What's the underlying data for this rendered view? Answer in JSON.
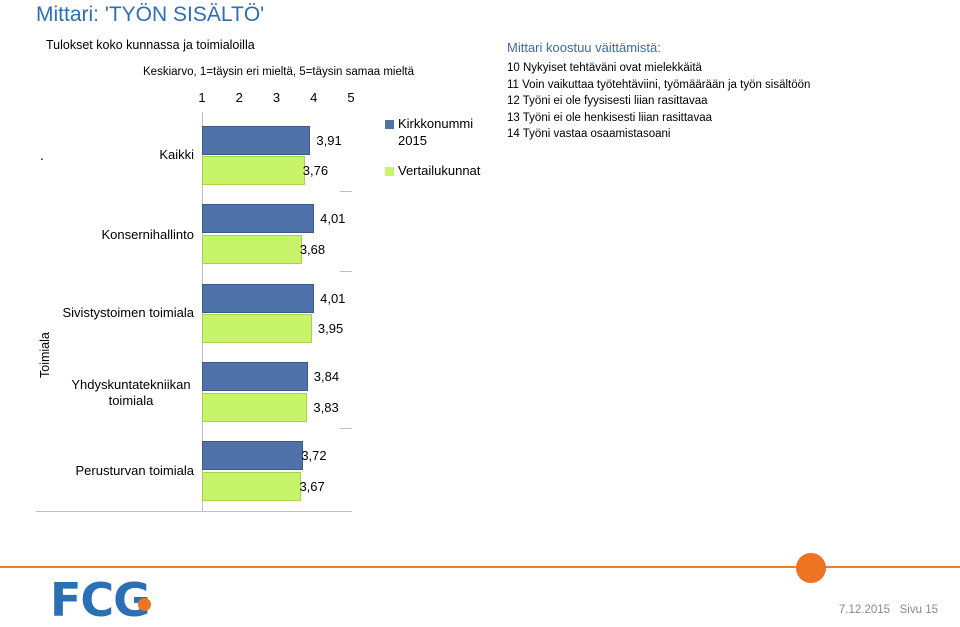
{
  "page": {
    "title": "Mittari: 'TYÖN SISÄLTÖ'",
    "footer_date": "7.12.2015",
    "footer_page": "Sivu 15",
    "logo_text": "FCG"
  },
  "chart_data": {
    "type": "bar",
    "orientation": "horizontal",
    "title": "Tulokset koko kunnassa ja toimialoilla",
    "subtitle": "Keskiarvo, 1=täysin eri mieltä, 5=täysin samaa mieltä",
    "xlim": [
      1,
      5
    ],
    "x_ticks": [
      "1",
      "2",
      "3",
      "4",
      "5"
    ],
    "group_label": "Toimiala",
    "leading_mark": ".",
    "categories": [
      "Kaikki",
      "Konsernihallinto",
      "Sivistystoimen toimiala",
      "Yhdyskuntatekniikan toimiala",
      "Perusturvan toimiala"
    ],
    "series": [
      {
        "name": "Kirkkonummi 2015",
        "values": [
          3.91,
          4.01,
          4.01,
          3.84,
          3.72
        ],
        "labels": [
          "3,91",
          "4,01",
          "4,01",
          "3,84",
          "3,72"
        ]
      },
      {
        "name": "Vertailukunnat",
        "values": [
          3.76,
          3.68,
          3.95,
          3.83,
          3.67
        ],
        "labels": [
          "3,76",
          "3,68",
          "3,95",
          "3,83",
          "3,67"
        ]
      }
    ],
    "legend_position": "right",
    "colors": [
      "#4f73a8",
      "#c8f469"
    ],
    "grid": false
  },
  "meter": {
    "title": "Mittari koostuu väittämistä:",
    "items": [
      "10 Nykyiset tehtäväni ovat mielekkäitä",
      "11 Voin vaikuttaa työtehtäviini, työmäärään ja työn sisältöön",
      "12 Työni ei ole fyysisesti liian rasittavaa",
      "13 Työni ei ole henkisesti liian rasittavaa",
      "14 Työni vastaa osaamistasoani"
    ]
  },
  "colors": {
    "accent": "#2f6eb6",
    "orange": "#ee7322"
  }
}
